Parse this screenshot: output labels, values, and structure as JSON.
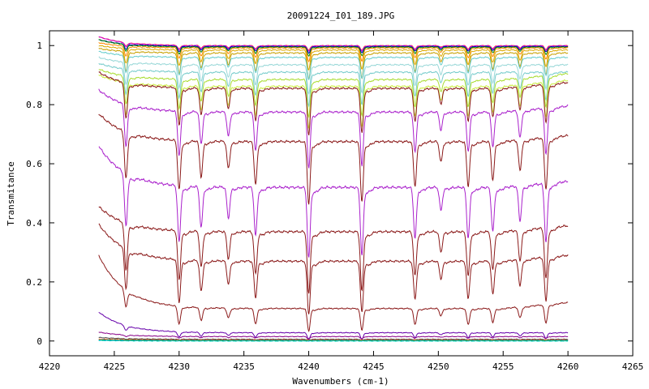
{
  "chart_data": {
    "type": "line",
    "title": "20091224_I01_189.JPG",
    "xlabel": "Wavenumbers (cm-1)",
    "ylabel": "Transmitance",
    "xlim": [
      4220,
      4265
    ],
    "ylim": [
      -0.05,
      1.05
    ],
    "xticks": [
      4220,
      4225,
      4230,
      4235,
      4240,
      4245,
      4250,
      4255,
      4260,
      4265
    ],
    "xtick_labels": [
      "4220",
      "4225",
      "4230",
      "4235",
      "4240",
      "4245",
      "4250",
      "4255",
      "4260",
      "4265"
    ],
    "yticks": [
      0,
      0.2,
      0.4,
      0.6,
      0.8,
      1
    ],
    "ytick_labels": [
      "0",
      "0.2",
      "0.4",
      "0.6",
      "0.8",
      "1"
    ],
    "grid": false,
    "legend": "none",
    "x_range_data": [
      4223.8,
      4260
    ],
    "absorption_lines": [
      {
        "x": 4225.9,
        "depth": 0.55
      },
      {
        "x": 4230.0,
        "depth": 0.58
      },
      {
        "x": 4231.7,
        "depth": 0.42
      },
      {
        "x": 4233.8,
        "depth": 0.32
      },
      {
        "x": 4235.9,
        "depth": 0.5
      },
      {
        "x": 4240.0,
        "depth": 0.73
      },
      {
        "x": 4244.1,
        "depth": 0.7
      },
      {
        "x": 4248.2,
        "depth": 0.52
      },
      {
        "x": 4250.2,
        "depth": 0.24
      },
      {
        "x": 4252.3,
        "depth": 0.52
      },
      {
        "x": 4254.2,
        "depth": 0.45
      },
      {
        "x": 4256.3,
        "depth": 0.36
      },
      {
        "x": 4258.3,
        "depth": 0.6
      }
    ],
    "series": [
      {
        "color": "#ff5555",
        "start": 1.03,
        "baseline": 1.0,
        "strength": 0.02
      },
      {
        "color": "#cc00cc",
        "start": 1.03,
        "baseline": 0.999,
        "strength": 0.025
      },
      {
        "color": "#0000cc",
        "start": 1.02,
        "baseline": 0.997,
        "strength": 0.03
      },
      {
        "color": "#008800",
        "start": 1.02,
        "baseline": 0.995,
        "strength": 0.04
      },
      {
        "color": "#ff8800",
        "start": 1.01,
        "baseline": 0.992,
        "strength": 0.06
      },
      {
        "color": "#ddaa00",
        "start": 1.0,
        "baseline": 0.985,
        "strength": 0.09
      },
      {
        "color": "#c8a000",
        "start": 0.99,
        "baseline": 0.975,
        "strength": 0.12
      },
      {
        "color": "#66cccc",
        "start": 0.98,
        "baseline": 0.96,
        "strength": 0.1
      },
      {
        "color": "#99d8d8",
        "start": 0.96,
        "baseline": 0.935,
        "strength": 0.13
      },
      {
        "color": "#77cccc",
        "start": 0.94,
        "baseline": 0.91,
        "strength": 0.15
      },
      {
        "color": "#aadd33",
        "start": 0.92,
        "baseline": 0.885,
        "strength": 0.17
      },
      {
        "color": "#ccee44",
        "start": 0.9,
        "baseline": 0.862,
        "strength": 0.19
      },
      {
        "color": "#8b1a1a",
        "start": 0.91,
        "baseline": 0.855,
        "strength": 0.21
      },
      {
        "color": "#aa22cc",
        "start": 0.85,
        "baseline": 0.775,
        "strength": 0.25
      },
      {
        "color": "#8b1a1a",
        "start": 0.77,
        "baseline": 0.675,
        "strength": 0.28
      },
      {
        "color": "#aa22cc",
        "start": 0.66,
        "baseline": 0.52,
        "strength": 0.32
      },
      {
        "color": "#8b1a1a",
        "start": 0.455,
        "baseline": 0.37,
        "strength": 0.28
      },
      {
        "color": "#8b1a1a",
        "start": 0.395,
        "baseline": 0.27,
        "strength": 0.24
      },
      {
        "color": "#8b1a1a",
        "start": 0.29,
        "baseline": 0.11,
        "strength": 0.1
      },
      {
        "color": "#6600aa",
        "start": 0.098,
        "baseline": 0.028,
        "strength": 0.03
      },
      {
        "color": "#880088",
        "start": 0.03,
        "baseline": 0.015,
        "strength": 0.01
      },
      {
        "color": "#444444",
        "start": 0.012,
        "baseline": 0.006,
        "strength": 0.004
      },
      {
        "color": "#ff6600",
        "start": 0.006,
        "baseline": 0.004,
        "strength": 0.002
      },
      {
        "color": "#0066ff",
        "start": 0.004,
        "baseline": 0.002,
        "strength": 0.002
      },
      {
        "color": "#00aa00",
        "start": 0.003,
        "baseline": 0.001,
        "strength": 0.0
      },
      {
        "color": "#00cccc",
        "start": 0.002,
        "baseline": 0.0,
        "strength": 0.0
      }
    ]
  }
}
